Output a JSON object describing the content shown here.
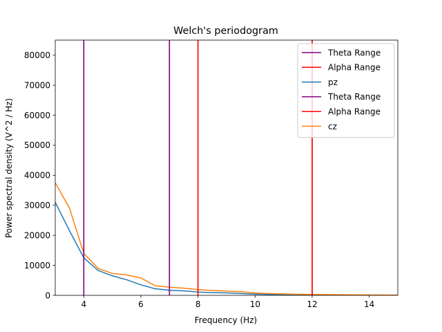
{
  "chart_data": {
    "type": "line",
    "title": "Welch's periodogram",
    "xlabel": "Frequency (Hz)",
    "ylabel": "Power spectral density (V^2 / Hz)",
    "xlim": [
      3,
      15
    ],
    "ylim": [
      0,
      85000
    ],
    "xticks": [
      4,
      6,
      8,
      10,
      12,
      14
    ],
    "yticks": [
      0,
      10000,
      20000,
      30000,
      40000,
      50000,
      60000,
      70000,
      80000
    ],
    "grid": false,
    "legend_position": "top-right",
    "vlines": [
      {
        "name": "Theta Range",
        "x": [
          4,
          7
        ],
        "color": "#800080"
      },
      {
        "name": "Alpha Range",
        "x": [
          8,
          12
        ],
        "color": "#ff0000"
      },
      {
        "name": "Theta Range",
        "x": [
          4,
          7
        ],
        "color": "#800080"
      },
      {
        "name": "Alpha Range",
        "x": [
          8,
          12
        ],
        "color": "#ff0000"
      }
    ],
    "series": [
      {
        "name": "pz",
        "color": "#1f77b4",
        "x": [
          3,
          3.5,
          4,
          4.5,
          5,
          5.5,
          6,
          6.5,
          7,
          7.5,
          8,
          8.5,
          9,
          9.5,
          10,
          10.5,
          11,
          11.5,
          12,
          12.5,
          13,
          13.5,
          14,
          14.5,
          15
        ],
        "y": [
          31000,
          21500,
          12500,
          8300,
          6500,
          5200,
          3500,
          2200,
          1700,
          1500,
          1100,
          900,
          800,
          600,
          400,
          300,
          250,
          200,
          150,
          120,
          100,
          80,
          70,
          60,
          50
        ]
      },
      {
        "name": "cz",
        "color": "#ff7f0e",
        "x": [
          3,
          3.5,
          4,
          4.5,
          5,
          5.5,
          6,
          6.5,
          7,
          7.5,
          8,
          8.5,
          9,
          9.5,
          10,
          10.5,
          11,
          11.5,
          12,
          12.5,
          13,
          13.5,
          14,
          14.5,
          15
        ],
        "y": [
          37500,
          29000,
          14000,
          9000,
          7300,
          6800,
          5800,
          3200,
          2700,
          2400,
          1900,
          1600,
          1400,
          1200,
          800,
          600,
          450,
          350,
          300,
          250,
          200,
          170,
          150,
          120,
          100
        ]
      }
    ],
    "legend": [
      {
        "label": "Theta Range",
        "color": "#800080"
      },
      {
        "label": "Alpha Range",
        "color": "#ff0000"
      },
      {
        "label": "pz",
        "color": "#1f77b4"
      },
      {
        "label": "Theta Range",
        "color": "#800080"
      },
      {
        "label": "Alpha Range",
        "color": "#ff0000"
      },
      {
        "label": "cz",
        "color": "#ff7f0e"
      }
    ]
  }
}
